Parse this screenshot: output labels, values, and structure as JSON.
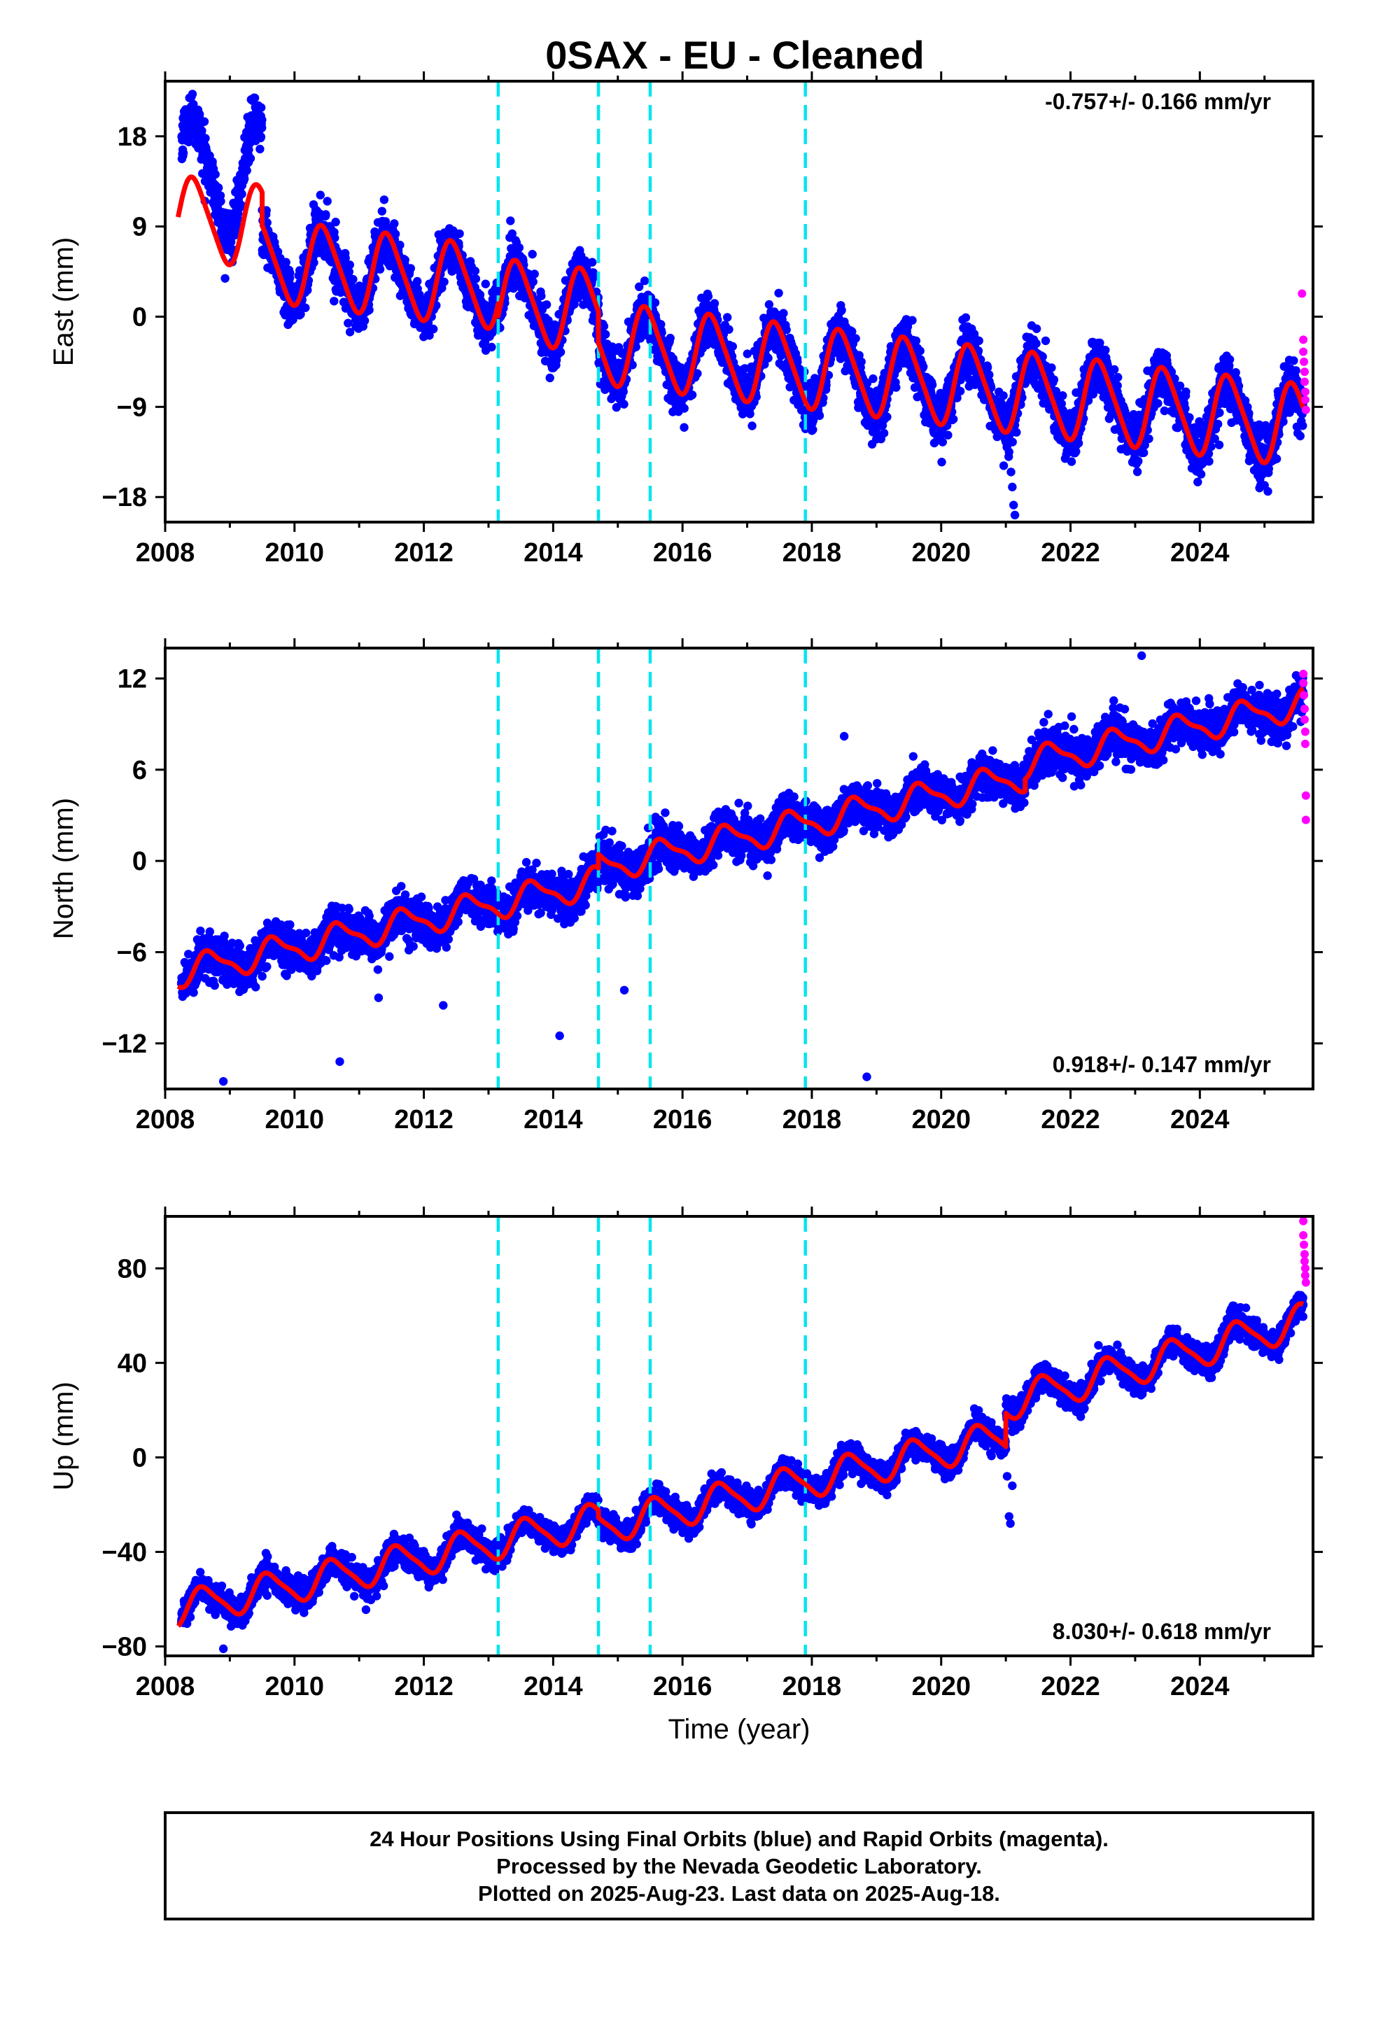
{
  "title": "0SAX  - EU - Cleaned",
  "colors": {
    "final_orbits": "#0000ff",
    "rapid_orbits": "#ff00ff",
    "model_fit": "#ff0000",
    "equipment_change": "#00e5ee"
  },
  "chart_data": [
    {
      "type": "scatter",
      "component": "east",
      "ylabel": "East (mm)",
      "xlabel": "",
      "xlim": [
        2008,
        2025.75
      ],
      "ylim": [
        -20.5,
        23.5
      ],
      "xticks": [
        2008,
        2010,
        2012,
        2014,
        2016,
        2018,
        2020,
        2022,
        2024
      ],
      "yticks": [
        -18,
        -9,
        0,
        9,
        18
      ],
      "ytick_labels": [
        "−18",
        "−9",
        "0",
        "9",
        "18"
      ],
      "rate_label": "-0.757+/- 0.166 mm/yr",
      "rate_position": "top-right",
      "equipment_changes": [
        2013.15,
        2014.7,
        2015.5,
        2017.9
      ],
      "data_start": 2008.25,
      "data_end": 2025.63,
      "series": [
        {
          "name": "Final Orbits",
          "color": "#0000ff",
          "segments": [
            {
              "start": 2008.25,
              "end": 2009.5,
              "offset": 14.6,
              "rate": -0.76,
              "amp": 5.5,
              "noise": 2.2
            },
            {
              "start": 2009.5,
              "end": 2013.15,
              "offset": 6.6,
              "rate": -0.76,
              "amp": 3.6,
              "noise": 2.2
            },
            {
              "start": 2013.15,
              "end": 2014.7,
              "offset": 5.4,
              "rate": -0.76,
              "amp": 3.6,
              "noise": 2.2
            },
            {
              "start": 2014.7,
              "end": 2025.6,
              "offset": 2.3,
              "rate": -0.76,
              "amp": 3.6,
              "noise": 2.2
            }
          ],
          "outliers": [
            {
              "x": 2021.05,
              "y": -13.5
            },
            {
              "x": 2021.08,
              "y": -15.5
            },
            {
              "x": 2021.1,
              "y": -17.0
            },
            {
              "x": 2021.12,
              "y": -18.8
            },
            {
              "x": 2021.14,
              "y": -19.8
            },
            {
              "x": 2021.0,
              "y": -12.5
            },
            {
              "x": 2015.85,
              "y": -9.5
            },
            {
              "x": 2014.9,
              "y": -8.2
            },
            {
              "x": 2024.3,
              "y": -12.8
            }
          ]
        },
        {
          "name": "Rapid Orbits",
          "color": "#ff00ff",
          "points": [
            {
              "x": 2025.58,
              "y": 2.3
            },
            {
              "x": 2025.6,
              "y": -2.3
            },
            {
              "x": 2025.6,
              "y": -3.5
            },
            {
              "x": 2025.61,
              "y": -4.5
            },
            {
              "x": 2025.62,
              "y": -5.5
            },
            {
              "x": 2025.62,
              "y": -6.5
            },
            {
              "x": 2025.63,
              "y": -7.5
            },
            {
              "x": 2025.63,
              "y": -8.3
            },
            {
              "x": 2025.64,
              "y": -9.3
            }
          ]
        },
        {
          "name": "Model",
          "color": "#ff0000",
          "model": {
            "start": 2008.2,
            "end": 2025.6,
            "amp1": 4.0,
            "amp2": 0.6,
            "phase": 0.2,
            "segments": [
              {
                "start": 2008.2,
                "end": 2009.5,
                "offset": 9.9
              },
              {
                "start": 2009.5,
                "end": 2013.15,
                "offset": 6.6
              },
              {
                "start": 2013.15,
                "end": 2014.7,
                "offset": 5.4
              },
              {
                "start": 2014.7,
                "end": 2025.6,
                "offset": 2.3
              }
            ],
            "rate": -0.76
          }
        }
      ]
    },
    {
      "type": "scatter",
      "component": "north",
      "ylabel": "North (mm)",
      "xlabel": "",
      "xlim": [
        2008,
        2025.75
      ],
      "ylim": [
        -15,
        14
      ],
      "xticks": [
        2008,
        2010,
        2012,
        2014,
        2016,
        2018,
        2020,
        2022,
        2024
      ],
      "yticks": [
        -12,
        -6,
        0,
        6,
        12
      ],
      "ytick_labels": [
        "−12",
        "−6",
        "0",
        "6",
        "12"
      ],
      "rate_label": "0.918+/- 0.147 mm/yr",
      "rate_position": "bottom-right",
      "equipment_changes": [
        2013.15,
        2014.7,
        2015.5,
        2017.9
      ],
      "series": [
        {
          "name": "Final Orbits",
          "color": "#0000ff",
          "segments": [
            {
              "start": 2008.25,
              "end": 2009.2,
              "offset": -7.3,
              "rate": 0.92,
              "amp": 0.7,
              "noise": 1.2
            },
            {
              "start": 2009.2,
              "end": 2014.7,
              "offset": -7.3,
              "rate": 0.92,
              "amp": 0.7,
              "noise": 1.2
            },
            {
              "start": 2014.7,
              "end": 2021.3,
              "offset": -6.4,
              "rate": 0.92,
              "amp": 0.7,
              "noise": 1.2
            },
            {
              "start": 2021.3,
              "end": 2025.6,
              "offset": -5.6,
              "rate": 0.92,
              "amp": 0.7,
              "noise": 1.2
            }
          ],
          "outliers": [
            {
              "x": 2008.9,
              "y": -14.5
            },
            {
              "x": 2010.7,
              "y": -13.2
            },
            {
              "x": 2014.1,
              "y": -11.5
            },
            {
              "x": 2018.85,
              "y": -14.2
            },
            {
              "x": 2023.1,
              "y": 13.5
            },
            {
              "x": 2018.5,
              "y": 8.2
            },
            {
              "x": 2011.3,
              "y": -9.0
            },
            {
              "x": 2012.3,
              "y": -9.5
            },
            {
              "x": 2015.1,
              "y": -8.5
            }
          ]
        },
        {
          "name": "Rapid Orbits",
          "color": "#ff00ff",
          "points": [
            {
              "x": 2025.6,
              "y": 12.3
            },
            {
              "x": 2025.6,
              "y": 11.7
            },
            {
              "x": 2025.61,
              "y": 10.9
            },
            {
              "x": 2025.62,
              "y": 10.0
            },
            {
              "x": 2025.62,
              "y": 9.3
            },
            {
              "x": 2025.63,
              "y": 8.5
            },
            {
              "x": 2025.63,
              "y": 7.7
            },
            {
              "x": 2025.64,
              "y": 4.3
            },
            {
              "x": 2025.64,
              "y": 2.7
            }
          ]
        },
        {
          "name": "Model",
          "color": "#ff0000",
          "model": {
            "start": 2008.2,
            "end": 2025.6,
            "amp1": 0.9,
            "amp2": 0.3,
            "phase": 0.45,
            "segments": [
              {
                "start": 2008.2,
                "end": 2014.7,
                "offset": -7.3
              },
              {
                "start": 2014.7,
                "end": 2021.3,
                "offset": -6.4
              },
              {
                "start": 2021.3,
                "end": 2025.6,
                "offset": -5.6
              }
            ],
            "rate": 0.92
          }
        }
      ]
    },
    {
      "type": "scatter",
      "component": "up",
      "ylabel": "Up (mm)",
      "xlabel": "Time (year)",
      "xlim": [
        2008,
        2025.75
      ],
      "ylim": [
        -84,
        102
      ],
      "xticks": [
        2008,
        2010,
        2012,
        2014,
        2016,
        2018,
        2020,
        2022,
        2024
      ],
      "yticks": [
        -80,
        -40,
        0,
        40,
        80
      ],
      "ytick_labels": [
        "−80",
        "−40",
        "0",
        "40",
        "80"
      ],
      "rate_label": "8.030+/- 0.618 mm/yr",
      "rate_position": "bottom-right",
      "equipment_changes": [
        2013.15,
        2014.7,
        2015.5,
        2017.9
      ],
      "series": [
        {
          "name": "Final Orbits",
          "color": "#0000ff",
          "segments": [
            {
              "start": 2008.25,
              "end": 2014.7,
              "offset": -64,
              "rate": 5.8,
              "amp": 6.0,
              "noise": 5.0
            },
            {
              "start": 2014.7,
              "end": 2021.0,
              "offset": -69,
              "rate": 6.1,
              "amp": 6.0,
              "noise": 5.0
            },
            {
              "start": 2021.0,
              "end": 2025.6,
              "offset": -74,
              "rate": 7.6,
              "amp": 6.5,
              "noise": 5.0
            }
          ],
          "outliers": [
            {
              "x": 2021.05,
              "y": -25
            },
            {
              "x": 2021.07,
              "y": -28
            },
            {
              "x": 2021.1,
              "y": -12
            },
            {
              "x": 2021.02,
              "y": -8
            },
            {
              "x": 2008.9,
              "y": -81
            },
            {
              "x": 2013.1,
              "y": -48
            }
          ]
        },
        {
          "name": "Rapid Orbits",
          "color": "#ff00ff",
          "points": [
            {
              "x": 2025.6,
              "y": 100
            },
            {
              "x": 2025.6,
              "y": 94
            },
            {
              "x": 2025.61,
              "y": 90
            },
            {
              "x": 2025.62,
              "y": 86
            },
            {
              "x": 2025.62,
              "y": 83
            },
            {
              "x": 2025.63,
              "y": 80
            },
            {
              "x": 2025.63,
              "y": 77
            },
            {
              "x": 2025.64,
              "y": 74
            }
          ]
        },
        {
          "name": "Model",
          "color": "#ff0000",
          "model": {
            "start": 2008.2,
            "end": 2025.6,
            "amp1": 7.0,
            "amp2": 1.5,
            "phase": 0.35,
            "segments": [
              {
                "start": 2008.2,
                "end": 2014.7,
                "offset": -64,
                "rate": 5.8
              },
              {
                "start": 2014.7,
                "end": 2021.0,
                "offset": -69,
                "rate": 6.1
              },
              {
                "start": 2021.0,
                "end": 2025.6,
                "offset": -74,
                "rate": 7.6
              }
            ]
          }
        }
      ]
    }
  ],
  "footer": {
    "line1": "24 Hour Positions Using Final Orbits (blue) and Rapid Orbits (magenta).",
    "line2": "Processed by the Nevada Geodetic Laboratory.",
    "line3": "Plotted on 2025-Aug-23. Last data on 2025-Aug-18."
  }
}
